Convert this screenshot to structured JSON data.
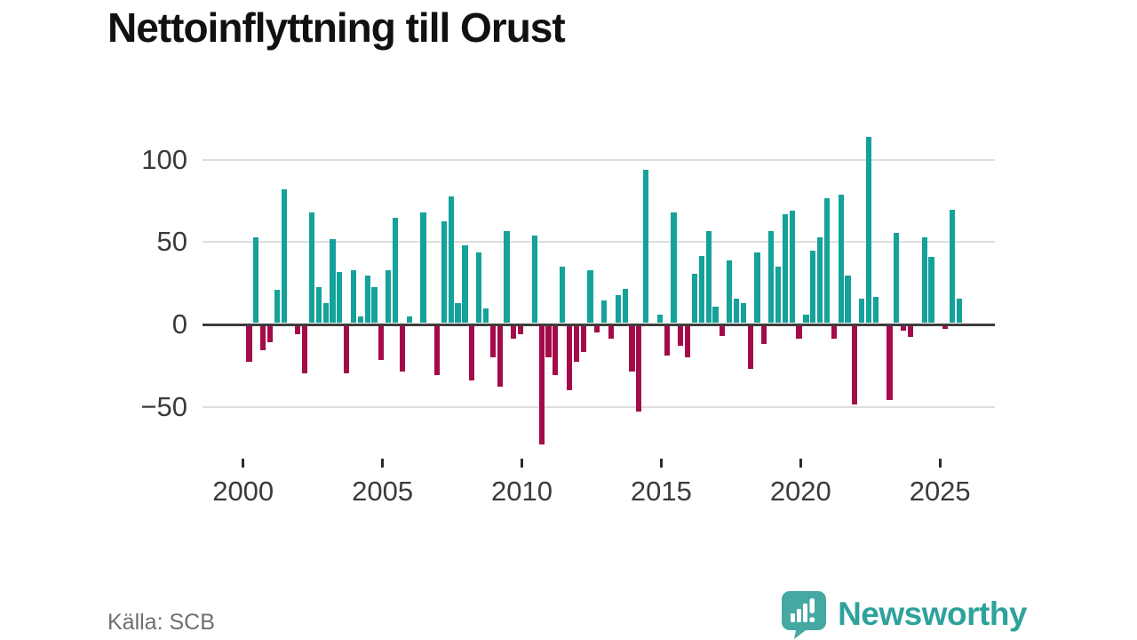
{
  "title": "Nettoinflyttning till Orust",
  "source": "Källa: SCB",
  "logo": {
    "brand": "Newsworthy"
  },
  "colors": {
    "positive": "#14a29a",
    "negative": "#a40b49",
    "logo_icon": "#46a8a2",
    "logo_text": "#2ea29b"
  },
  "chart_data": {
    "type": "bar",
    "title": "Nettoinflyttning till Orust",
    "frequency": "quarterly",
    "x_start": "2000Q1",
    "x_end": "2025Q3",
    "x_tick_labels": [
      "2000",
      "2005",
      "2010",
      "2015",
      "2020",
      "2025"
    ],
    "y_ticks": [
      100,
      50,
      0,
      -50
    ],
    "y_tick_labels": [
      "100",
      "50",
      "0",
      "−50"
    ],
    "ylim": [
      -80,
      120
    ],
    "grid": "horizontal",
    "legend": "none",
    "series": [
      {
        "name": "Nettoinflyttning",
        "values": [
          -22,
          52,
          -15,
          -10,
          20,
          81,
          0,
          -5,
          -29,
          67,
          22,
          12,
          51,
          31,
          -29,
          32,
          4,
          29,
          22,
          -21,
          32,
          64,
          -28,
          4,
          0,
          67,
          0,
          -30,
          62,
          77,
          12,
          47,
          -33,
          43,
          9,
          -19,
          -37,
          56,
          -8,
          -5,
          0,
          53,
          -72,
          -19,
          -30,
          34,
          -39,
          -22,
          -16,
          32,
          -4,
          14,
          -8,
          17,
          21,
          -28,
          -52,
          93,
          0,
          5,
          -18,
          67,
          -12,
          -19,
          30,
          41,
          56,
          10,
          -6,
          38,
          15,
          12,
          -26,
          43,
          -11,
          56,
          34,
          66,
          68,
          -8,
          5,
          44,
          52,
          76,
          -8,
          78,
          29,
          -48,
          15,
          113,
          16,
          0,
          -45,
          55,
          -3,
          -7,
          0,
          52,
          40,
          0,
          -2,
          69,
          15
        ]
      }
    ]
  }
}
